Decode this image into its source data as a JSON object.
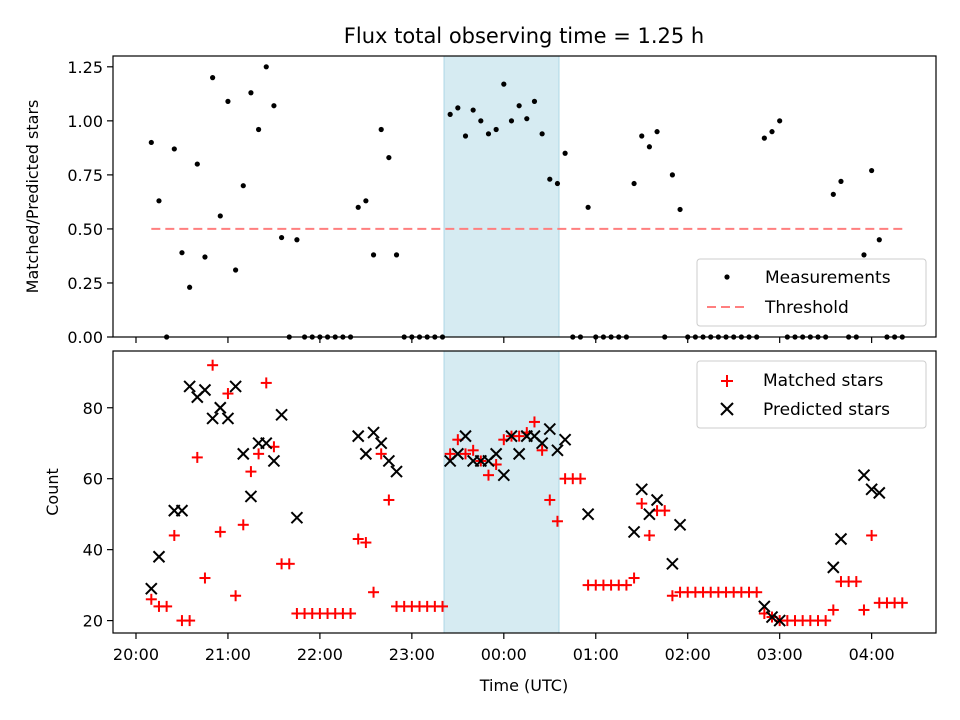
{
  "title": "Flux total observing time = 1.25 h",
  "chart_data": [
    {
      "type": "scatter",
      "ylabel": "Matched/Predicted stars",
      "ylim": [
        0,
        1.3
      ],
      "ytick_labels": [
        "0.00",
        "0.25",
        "0.50",
        "0.75",
        "1.00",
        "1.25"
      ],
      "xlim_hours": [
        19.75,
        4.7
      ],
      "shaded_region": [
        "23:21",
        "00:36"
      ],
      "legend_position": "lower-right",
      "series": [
        {
          "name": "Measurements",
          "color": "#000000",
          "marker": "dot",
          "points": [
            [
              "20:10",
              0.9
            ],
            [
              "20:15",
              0.63
            ],
            [
              "20:20",
              0.0
            ],
            [
              "20:25",
              0.87
            ],
            [
              "20:30",
              0.39
            ],
            [
              "20:35",
              0.23
            ],
            [
              "20:40",
              0.8
            ],
            [
              "20:45",
              0.37
            ],
            [
              "20:50",
              1.2
            ],
            [
              "20:55",
              0.56
            ],
            [
              "21:00",
              1.09
            ],
            [
              "21:05",
              0.31
            ],
            [
              "21:10",
              0.7
            ],
            [
              "21:15",
              1.13
            ],
            [
              "21:20",
              0.96
            ],
            [
              "21:25",
              1.25
            ],
            [
              "21:30",
              1.07
            ],
            [
              "21:35",
              0.46
            ],
            [
              "21:40",
              0.0
            ],
            [
              "21:45",
              0.45
            ],
            [
              "21:50",
              0.0
            ],
            [
              "21:55",
              0.0
            ],
            [
              "22:00",
              0.0
            ],
            [
              "22:05",
              0.0
            ],
            [
              "22:10",
              0.0
            ],
            [
              "22:15",
              0.0
            ],
            [
              "22:20",
              0.0
            ],
            [
              "22:25",
              0.6
            ],
            [
              "22:30",
              0.63
            ],
            [
              "22:35",
              0.38
            ],
            [
              "22:40",
              0.96
            ],
            [
              "22:45",
              0.83
            ],
            [
              "22:50",
              0.38
            ],
            [
              "22:55",
              0.0
            ],
            [
              "23:00",
              0.0
            ],
            [
              "23:05",
              0.0
            ],
            [
              "23:10",
              0.0
            ],
            [
              "23:15",
              0.0
            ],
            [
              "23:20",
              0.0
            ],
            [
              "23:25",
              1.03
            ],
            [
              "23:30",
              1.06
            ],
            [
              "23:35",
              0.93
            ],
            [
              "23:40",
              1.05
            ],
            [
              "23:45",
              1.0
            ],
            [
              "23:50",
              0.94
            ],
            [
              "23:55",
              0.96
            ],
            [
              "00:00",
              1.17
            ],
            [
              "00:05",
              1.0
            ],
            [
              "00:10",
              1.07
            ],
            [
              "00:15",
              1.01
            ],
            [
              "00:20",
              1.09
            ],
            [
              "00:25",
              0.94
            ],
            [
              "00:30",
              0.73
            ],
            [
              "00:35",
              0.71
            ],
            [
              "00:40",
              0.85
            ],
            [
              "00:45",
              0.0
            ],
            [
              "00:50",
              0.0
            ],
            [
              "00:55",
              0.6
            ],
            [
              "01:00",
              0.0
            ],
            [
              "01:05",
              0.0
            ],
            [
              "01:10",
              0.0
            ],
            [
              "01:15",
              0.0
            ],
            [
              "01:20",
              0.0
            ],
            [
              "01:25",
              0.71
            ],
            [
              "01:30",
              0.93
            ],
            [
              "01:35",
              0.88
            ],
            [
              "01:40",
              0.95
            ],
            [
              "01:45",
              0.0
            ],
            [
              "01:50",
              0.75
            ],
            [
              "01:55",
              0.59
            ],
            [
              "02:00",
              0.0
            ],
            [
              "02:05",
              0.0
            ],
            [
              "02:10",
              0.0
            ],
            [
              "02:15",
              0.0
            ],
            [
              "02:20",
              0.0
            ],
            [
              "02:25",
              0.0
            ],
            [
              "02:30",
              0.0
            ],
            [
              "02:35",
              0.0
            ],
            [
              "02:40",
              0.0
            ],
            [
              "02:45",
              0.0
            ],
            [
              "02:50",
              0.92
            ],
            [
              "02:55",
              0.95
            ],
            [
              "03:00",
              1.0
            ],
            [
              "03:05",
              0.0
            ],
            [
              "03:10",
              0.0
            ],
            [
              "03:15",
              0.0
            ],
            [
              "03:20",
              0.0
            ],
            [
              "03:25",
              0.0
            ],
            [
              "03:30",
              0.0
            ],
            [
              "03:35",
              0.66
            ],
            [
              "03:40",
              0.72
            ],
            [
              "03:45",
              0.0
            ],
            [
              "03:50",
              0.0
            ],
            [
              "03:55",
              0.38
            ],
            [
              "04:00",
              0.77
            ],
            [
              "04:05",
              0.45
            ],
            [
              "04:10",
              0.0
            ],
            [
              "04:15",
              0.0
            ],
            [
              "04:20",
              0.0
            ]
          ]
        },
        {
          "name": "Threshold",
          "color": "#ff7f7f",
          "style": "dashed",
          "points": [
            [
              "20:10",
              0.5
            ],
            [
              "04:20",
              0.5
            ]
          ]
        }
      ]
    },
    {
      "type": "scatter",
      "xlabel": "Time (UTC)",
      "ylabel": "Count",
      "ylim": [
        16.5,
        96
      ],
      "ytick_labels": [
        "20",
        "40",
        "60",
        "80"
      ],
      "xtick_labels": [
        "20:00",
        "21:00",
        "22:00",
        "23:00",
        "00:00",
        "01:00",
        "02:00",
        "03:00",
        "04:00"
      ],
      "xlim_hours": [
        19.75,
        4.7
      ],
      "shaded_region": [
        "23:21",
        "00:36"
      ],
      "legend_position": "upper-right",
      "series": [
        {
          "name": "Matched stars",
          "color": "#ff0000",
          "marker": "+",
          "points": [
            [
              "20:10",
              26
            ],
            [
              "20:15",
              24
            ],
            [
              "20:20",
              24
            ],
            [
              "20:25",
              44
            ],
            [
              "20:30",
              20
            ],
            [
              "20:35",
              20
            ],
            [
              "20:40",
              66
            ],
            [
              "20:45",
              32
            ],
            [
              "20:50",
              92
            ],
            [
              "20:55",
              45
            ],
            [
              "21:00",
              84
            ],
            [
              "21:05",
              27
            ],
            [
              "21:10",
              47
            ],
            [
              "21:15",
              62
            ],
            [
              "21:20",
              67
            ],
            [
              "21:25",
              87
            ],
            [
              "21:30",
              69
            ],
            [
              "21:35",
              36
            ],
            [
              "21:40",
              36
            ],
            [
              "21:45",
              22
            ],
            [
              "21:50",
              22
            ],
            [
              "21:55",
              22
            ],
            [
              "22:00",
              22
            ],
            [
              "22:05",
              22
            ],
            [
              "22:10",
              22
            ],
            [
              "22:15",
              22
            ],
            [
              "22:20",
              22
            ],
            [
              "22:25",
              43
            ],
            [
              "22:30",
              42
            ],
            [
              "22:35",
              28
            ],
            [
              "22:40",
              67
            ],
            [
              "22:45",
              54
            ],
            [
              "22:50",
              24
            ],
            [
              "22:55",
              24
            ],
            [
              "23:00",
              24
            ],
            [
              "23:05",
              24
            ],
            [
              "23:10",
              24
            ],
            [
              "23:15",
              24
            ],
            [
              "23:20",
              24
            ],
            [
              "23:25",
              67
            ],
            [
              "23:30",
              71
            ],
            [
              "23:35",
              67
            ],
            [
              "23:40",
              68
            ],
            [
              "23:45",
              65
            ],
            [
              "23:50",
              61
            ],
            [
              "23:55",
              64
            ],
            [
              "00:00",
              71
            ],
            [
              "00:05",
              72
            ],
            [
              "00:10",
              72
            ],
            [
              "00:15",
              73
            ],
            [
              "00:20",
              76
            ],
            [
              "00:25",
              68
            ],
            [
              "00:30",
              54
            ],
            [
              "00:35",
              48
            ],
            [
              "00:40",
              60
            ],
            [
              "00:45",
              60
            ],
            [
              "00:50",
              60
            ],
            [
              "00:55",
              30
            ],
            [
              "01:00",
              30
            ],
            [
              "01:05",
              30
            ],
            [
              "01:10",
              30
            ],
            [
              "01:15",
              30
            ],
            [
              "01:20",
              30
            ],
            [
              "01:25",
              32
            ],
            [
              "01:30",
              53
            ],
            [
              "01:35",
              44
            ],
            [
              "01:40",
              51
            ],
            [
              "01:45",
              51
            ],
            [
              "01:50",
              27
            ],
            [
              "01:55",
              28
            ],
            [
              "02:00",
              28
            ],
            [
              "02:05",
              28
            ],
            [
              "02:10",
              28
            ],
            [
              "02:15",
              28
            ],
            [
              "02:20",
              28
            ],
            [
              "02:25",
              28
            ],
            [
              "02:30",
              28
            ],
            [
              "02:35",
              28
            ],
            [
              "02:40",
              28
            ],
            [
              "02:45",
              28
            ],
            [
              "02:50",
              22
            ],
            [
              "02:55",
              21
            ],
            [
              "03:00",
              20
            ],
            [
              "03:05",
              20
            ],
            [
              "03:10",
              20
            ],
            [
              "03:15",
              20
            ],
            [
              "03:20",
              20
            ],
            [
              "03:25",
              20
            ],
            [
              "03:30",
              20
            ],
            [
              "03:35",
              23
            ],
            [
              "03:40",
              31
            ],
            [
              "03:45",
              31
            ],
            [
              "03:50",
              31
            ],
            [
              "03:55",
              23
            ],
            [
              "04:00",
              44
            ],
            [
              "04:05",
              25
            ],
            [
              "04:10",
              25
            ],
            [
              "04:15",
              25
            ],
            [
              "04:20",
              25
            ]
          ]
        },
        {
          "name": "Predicted stars",
          "color": "#000000",
          "marker": "x",
          "points": [
            [
              "20:10",
              29
            ],
            [
              "20:15",
              38
            ],
            [
              "20:25",
              51
            ],
            [
              "20:30",
              51
            ],
            [
              "20:35",
              86
            ],
            [
              "20:40",
              83
            ],
            [
              "20:45",
              85
            ],
            [
              "20:50",
              77
            ],
            [
              "20:55",
              80
            ],
            [
              "21:00",
              77
            ],
            [
              "21:05",
              86
            ],
            [
              "21:10",
              67
            ],
            [
              "21:15",
              55
            ],
            [
              "21:20",
              70
            ],
            [
              "21:25",
              70
            ],
            [
              "21:30",
              65
            ],
            [
              "21:35",
              78
            ],
            [
              "21:45",
              49
            ],
            [
              "22:25",
              72
            ],
            [
              "22:30",
              67
            ],
            [
              "22:35",
              73
            ],
            [
              "22:40",
              70
            ],
            [
              "22:45",
              65
            ],
            [
              "22:50",
              62
            ],
            [
              "23:25",
              65
            ],
            [
              "23:30",
              67
            ],
            [
              "23:35",
              72
            ],
            [
              "23:40",
              65
            ],
            [
              "23:45",
              65
            ],
            [
              "23:50",
              65
            ],
            [
              "23:55",
              67
            ],
            [
              "00:00",
              61
            ],
            [
              "00:05",
              72
            ],
            [
              "00:10",
              67
            ],
            [
              "00:15",
              72
            ],
            [
              "00:20",
              72
            ],
            [
              "00:25",
              70
            ],
            [
              "00:30",
              74
            ],
            [
              "00:35",
              68
            ],
            [
              "00:40",
              71
            ],
            [
              "00:55",
              50
            ],
            [
              "01:25",
              45
            ],
            [
              "01:30",
              57
            ],
            [
              "01:35",
              50
            ],
            [
              "01:40",
              54
            ],
            [
              "01:50",
              36
            ],
            [
              "01:55",
              47
            ],
            [
              "02:50",
              24
            ],
            [
              "02:55",
              21
            ],
            [
              "03:00",
              20
            ],
            [
              "03:35",
              35
            ],
            [
              "03:40",
              43
            ],
            [
              "03:55",
              61
            ],
            [
              "04:00",
              57
            ],
            [
              "04:05",
              56
            ]
          ]
        }
      ]
    }
  ]
}
